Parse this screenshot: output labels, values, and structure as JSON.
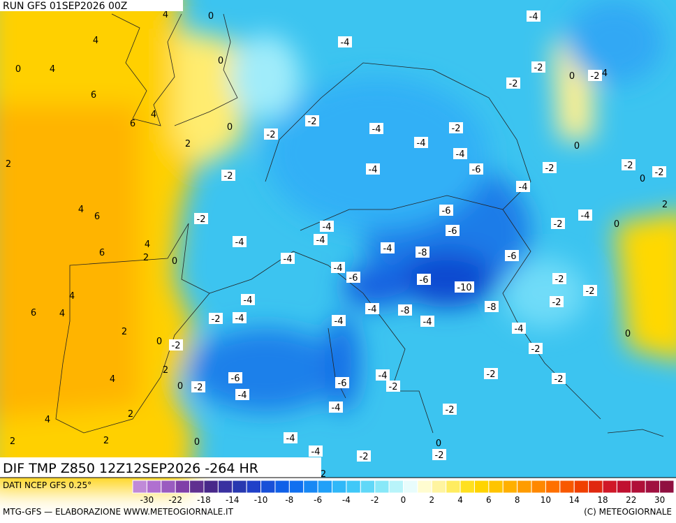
{
  "header": {
    "run": "RUN GFS 01SEP2026 00Z"
  },
  "footer": {
    "title": "DIF TMP Z850 12Z12SEP2026 -264 HR",
    "source": "DATI NCEP GFS 0.25°",
    "credit": "MTG-GFS — ELABORAZIONE WWW.METEOGIORNALE.IT",
    "copyright": "(C) METEOGIORNALE"
  },
  "map": {
    "labels": [
      "4",
      "0",
      "-4",
      "4",
      "-4",
      "0",
      "4",
      "0",
      "-2",
      "0",
      "-2",
      "4",
      "-2",
      "6",
      "4",
      "-2",
      "6",
      "0",
      "-4",
      "-2",
      "-2",
      "2",
      "-4",
      "0",
      "-4",
      "2",
      "-4",
      "-6",
      "-2",
      "-2",
      "-2",
      "0",
      "-2",
      "-4",
      "2",
      "4",
      "6",
      "-2",
      "-6",
      "-4",
      "-2",
      "0",
      "-4",
      "-6",
      "-4",
      "-4",
      "4",
      "6",
      "2",
      "-4",
      "-8",
      "-6",
      "0",
      "-4",
      "-4",
      "-6",
      "-6",
      "-10",
      "-2",
      "-2",
      "4",
      "-4",
      "-2",
      "6",
      "4",
      "-4",
      "-8",
      "-8",
      "-2",
      "-4",
      "-4",
      "-4",
      "2",
      "-4",
      "0",
      "0",
      "-2",
      "-2",
      "2",
      "-6",
      "-4",
      "-2",
      "-2",
      "4",
      "0",
      "-2",
      "-6",
      "-2",
      "-4",
      "-4",
      "-2",
      "2",
      "4",
      "-4",
      "2",
      "2",
      "0",
      "0",
      "-4",
      "-2",
      "-2",
      "2"
    ]
  },
  "colorbar": {
    "colors": [
      "#c08ad8",
      "#b070d0",
      "#9a5cc0",
      "#8040a8",
      "#603090",
      "#48288a",
      "#3a30a0",
      "#2838b0",
      "#2040c8",
      "#1850d8",
      "#1060e8",
      "#1070f0",
      "#1888f4",
      "#20a0f8",
      "#30b8f8",
      "#40c8f8",
      "#60d8f8",
      "#88e8f8",
      "#b8f4fa",
      "#e8fcfc",
      "#fffcd0",
      "#fff4a0",
      "#ffec60",
      "#ffe020",
      "#ffd400",
      "#ffc400",
      "#ffb000",
      "#ff9c00",
      "#ff8800",
      "#ff7000",
      "#f85800",
      "#f04000",
      "#e02810",
      "#d01828",
      "#c01030",
      "#b01038",
      "#a01040",
      "#901040"
    ],
    "labels": [
      "-30",
      "-22",
      "-18",
      "-14",
      "-10",
      "-8",
      "-6",
      "-4",
      "-2",
      "0",
      "2",
      "4",
      "6",
      "8",
      "10",
      "14",
      "18",
      "22",
      "30"
    ]
  }
}
